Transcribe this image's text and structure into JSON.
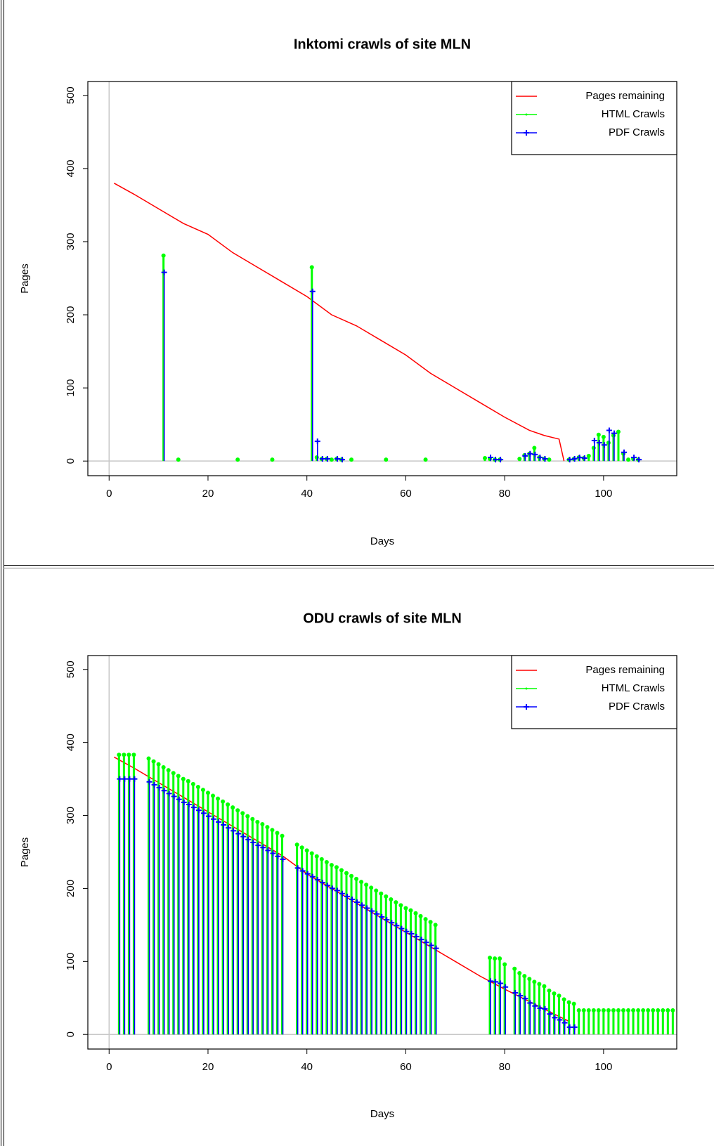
{
  "chart_data": [
    {
      "type": "line",
      "title": "Inktomi crawls of site MLN",
      "x_label": "Days",
      "y_label": "Pages",
      "xlim": [
        -4.3,
        114.8
      ],
      "ylim": [
        -20,
        519
      ],
      "xticks": [
        0,
        20,
        40,
        60,
        80,
        100
      ],
      "yticks": [
        0,
        100,
        200,
        300,
        400,
        500
      ],
      "abline_x": 0,
      "abline_y": 0,
      "legend": "topright",
      "series": [
        {
          "name": "Pages remaining",
          "color": "#ff0000",
          "style": "line",
          "x": [
            1,
            5,
            10,
            15,
            20,
            25,
            30,
            35,
            40,
            45,
            50,
            55,
            60,
            65,
            70,
            75,
            80,
            85,
            88,
            91,
            92
          ],
          "values": [
            380,
            365,
            345,
            325,
            310,
            285,
            265,
            245,
            225,
            200,
            185,
            165,
            145,
            120,
            100,
            80,
            60,
            42,
            35,
            30,
            0
          ]
        },
        {
          "name": "HTML Crawls",
          "color": "#00ff00",
          "style": "stick",
          "x": [
            11,
            14,
            26,
            33,
            41,
            42,
            43,
            44,
            45,
            46,
            47,
            49,
            56,
            64,
            76,
            77,
            78,
            79,
            83,
            84,
            85,
            86,
            87,
            88,
            89,
            93,
            94,
            95,
            96,
            97,
            98,
            99,
            100,
            101,
            102,
            103,
            104,
            105,
            106,
            107
          ],
          "values": [
            281,
            2,
            2,
            2,
            265,
            5,
            3,
            3,
            2,
            3,
            2,
            2,
            2,
            2,
            4,
            3,
            2,
            2,
            3,
            8,
            10,
            18,
            5,
            3,
            2,
            2,
            3,
            5,
            4,
            7,
            18,
            36,
            33,
            25,
            35,
            40,
            10,
            2,
            3,
            2
          ]
        },
        {
          "name": "PDF Crawls",
          "color": "#0000ff",
          "style": "stick-plus",
          "x": [
            11,
            41,
            42,
            43,
            44,
            46,
            47,
            77,
            78,
            79,
            84,
            85,
            86,
            87,
            88,
            93,
            94,
            95,
            96,
            98,
            99,
            100,
            101,
            102,
            104,
            106,
            107
          ],
          "values": [
            258,
            232,
            27,
            3,
            3,
            3,
            2,
            5,
            2,
            2,
            7,
            10,
            9,
            5,
            3,
            2,
            3,
            5,
            4,
            28,
            25,
            22,
            42,
            38,
            12,
            5,
            2
          ]
        }
      ]
    },
    {
      "type": "line",
      "title": "ODU crawls of site MLN",
      "x_label": "Days",
      "y_label": "Pages",
      "xlim": [
        -4.3,
        114.8
      ],
      "ylim": [
        -20,
        519
      ],
      "xticks": [
        0,
        20,
        40,
        60,
        80,
        100
      ],
      "yticks": [
        0,
        100,
        200,
        300,
        400,
        500
      ],
      "abline_x": 0,
      "abline_y": 0,
      "legend": "topright",
      "series": [
        {
          "name": "Pages remaining",
          "color": "#ff0000",
          "style": "line",
          "x": [
            1,
            5,
            10,
            15,
            20,
            25,
            30,
            35,
            40,
            45,
            50,
            55,
            60,
            65,
            70,
            75,
            80,
            85,
            90,
            93
          ],
          "values": [
            380,
            365,
            345,
            325,
            305,
            285,
            265,
            245,
            220,
            200,
            180,
            160,
            140,
            120,
            100,
            80,
            62,
            45,
            28,
            18
          ]
        },
        {
          "name": "HTML Crawls",
          "color": "#00ff00",
          "style": "stick",
          "x": [
            2,
            3,
            4,
            5,
            8,
            9,
            10,
            11,
            12,
            13,
            14,
            15,
            16,
            17,
            18,
            19,
            20,
            21,
            22,
            23,
            24,
            25,
            26,
            27,
            28,
            29,
            30,
            31,
            32,
            33,
            34,
            35,
            38,
            39,
            40,
            41,
            42,
            43,
            44,
            45,
            46,
            47,
            48,
            49,
            50,
            51,
            52,
            53,
            54,
            55,
            56,
            57,
            58,
            59,
            60,
            61,
            62,
            63,
            64,
            65,
            66,
            77,
            78,
            79,
            80,
            82,
            83,
            84,
            85,
            86,
            87,
            88,
            89,
            90,
            91,
            92,
            93,
            94,
            95,
            96,
            97,
            98,
            99,
            100,
            101,
            102,
            103,
            104,
            105,
            106,
            107,
            108,
            109,
            110,
            111,
            112,
            113,
            114
          ],
          "values": [
            383,
            383,
            383,
            383,
            378,
            374,
            370,
            366,
            362,
            358,
            354,
            350,
            347,
            343,
            339,
            335,
            331,
            327,
            323,
            319,
            315,
            311,
            307,
            303,
            299,
            295,
            291,
            288,
            284,
            280,
            276,
            272,
            260,
            256,
            252,
            248,
            244,
            240,
            236,
            232,
            229,
            225,
            221,
            217,
            213,
            209,
            205,
            201,
            197,
            193,
            189,
            185,
            181,
            177,
            173,
            170,
            166,
            162,
            158,
            154,
            150,
            105,
            104,
            104,
            96,
            90,
            84,
            80,
            76,
            72,
            69,
            66,
            60,
            56,
            53,
            48,
            44,
            42,
            33,
            33,
            33,
            33,
            33,
            33,
            33,
            33,
            33,
            33,
            33,
            33,
            33,
            33,
            33,
            33,
            33,
            33,
            33,
            33
          ]
        },
        {
          "name": "PDF Crawls",
          "color": "#0000ff",
          "style": "stick-plus",
          "x": [
            2,
            3,
            4,
            5,
            8,
            9,
            10,
            11,
            12,
            13,
            14,
            15,
            16,
            17,
            18,
            19,
            20,
            21,
            22,
            23,
            24,
            25,
            26,
            27,
            28,
            29,
            30,
            31,
            32,
            33,
            34,
            35,
            38,
            39,
            40,
            41,
            42,
            43,
            44,
            45,
            46,
            47,
            48,
            49,
            50,
            51,
            52,
            53,
            54,
            55,
            56,
            57,
            58,
            59,
            60,
            61,
            62,
            63,
            64,
            65,
            66,
            77,
            78,
            79,
            80,
            82,
            83,
            84,
            85,
            86,
            87,
            88,
            89,
            90,
            91,
            92,
            93,
            94
          ],
          "values": [
            350,
            350,
            350,
            350,
            346,
            342,
            338,
            334,
            330,
            326,
            322,
            318,
            315,
            311,
            307,
            303,
            299,
            295,
            291,
            287,
            283,
            279,
            275,
            271,
            267,
            263,
            259,
            256,
            252,
            248,
            244,
            240,
            228,
            224,
            220,
            216,
            212,
            208,
            204,
            200,
            197,
            193,
            189,
            185,
            181,
            177,
            173,
            169,
            165,
            161,
            157,
            153,
            149,
            145,
            141,
            138,
            134,
            130,
            126,
            122,
            118,
            73,
            72,
            70,
            65,
            57,
            53,
            49,
            43,
            39,
            36,
            35,
            28,
            23,
            20,
            16,
            10,
            10
          ]
        }
      ]
    }
  ]
}
